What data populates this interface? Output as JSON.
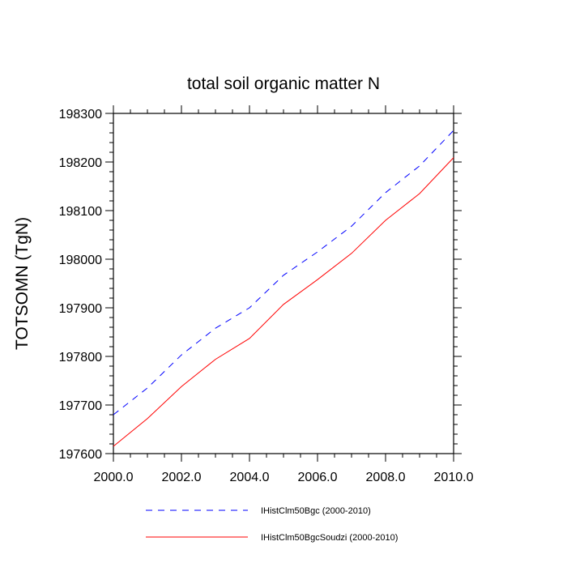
{
  "chart_data": {
    "type": "line",
    "title": "total soil organic matter N",
    "xlabel": "",
    "ylabel": "TOTSOMN  (TgN)",
    "xlim": [
      2000,
      2010
    ],
    "ylim": [
      197600,
      198300
    ],
    "x_ticks": [
      "2000.0",
      "2002.0",
      "2004.0",
      "2006.0",
      "2008.0",
      "2010.0"
    ],
    "y_ticks": [
      "197600",
      "197700",
      "197800",
      "197900",
      "198000",
      "198100",
      "198200",
      "198300"
    ],
    "x": [
      2000,
      2001,
      2002,
      2003,
      2004,
      2005,
      2006,
      2007,
      2008,
      2009,
      2010
    ],
    "series": [
      {
        "name": "IHistClm50Bgc (2000-2010)",
        "color": "#0000ff",
        "dash": "dashed",
        "values": [
          197680,
          197735,
          197803,
          197858,
          197900,
          197967,
          198015,
          198068,
          198137,
          198192,
          198265
        ]
      },
      {
        "name": "IHistClm50BgcSoudzi (2000-2010)",
        "color": "#ff0000",
        "dash": "solid",
        "values": [
          197615,
          197672,
          197738,
          197794,
          197837,
          197907,
          197958,
          198012,
          198080,
          198135,
          198209
        ]
      }
    ],
    "grid": false,
    "legend_position": "bottom"
  }
}
